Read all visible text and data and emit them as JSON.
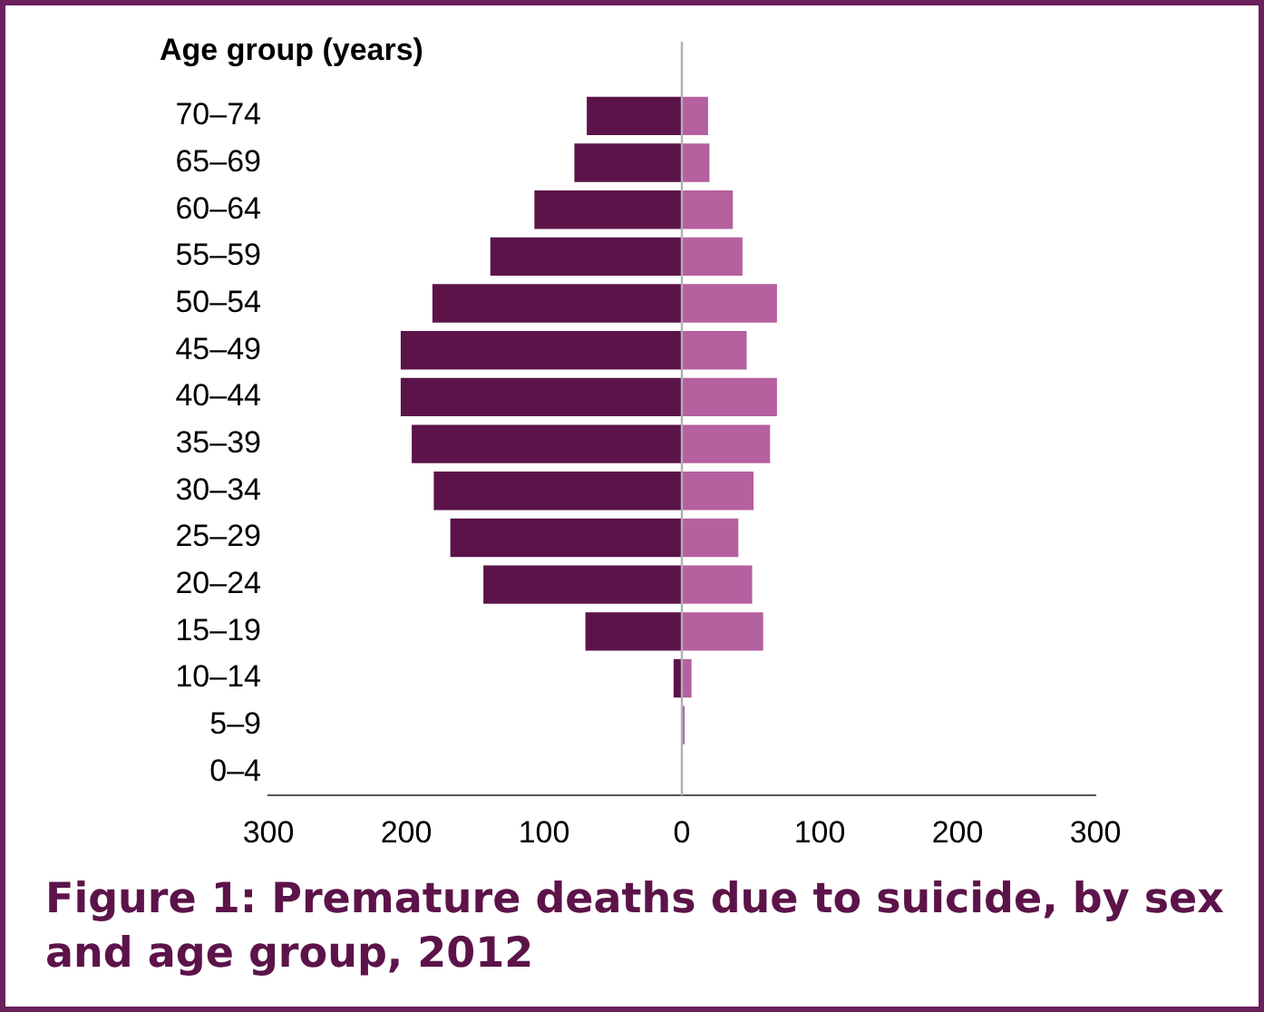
{
  "chart_data": {
    "type": "bar",
    "orientation": "horizontal",
    "stacked": true,
    "title": "Figure 1: Premature deaths due to suicide, by sex and age group, 2012",
    "ylabel": "Age group (years)",
    "categories": [
      "70–74",
      "65–69",
      "60–64",
      "55–59",
      "50–54",
      "45–49",
      "40–44",
      "35–39",
      "30–34",
      "25–29",
      "20–24",
      "15–19",
      "10–14",
      "5–9",
      "0–4"
    ],
    "series": [
      {
        "color": "#5c1349",
        "values": [
          -69,
          -78,
          -107,
          -139,
          -181,
          -204,
          -204,
          -196,
          -180,
          -168,
          -144,
          -70,
          -6,
          0,
          0
        ]
      },
      {
        "color": "#b5609f",
        "values": [
          19,
          20,
          37,
          44,
          69,
          47,
          69,
          64,
          52,
          41,
          51,
          59,
          7,
          2,
          0
        ]
      }
    ],
    "xlim": [
      -300,
      300
    ],
    "xticks": [
      {
        "value": -300,
        "label": "300"
      },
      {
        "value": -200,
        "label": "200"
      },
      {
        "value": -100,
        "label": "100"
      },
      0,
      100,
      200,
      300
    ],
    "ref_lines": [
      {
        "axis": "x",
        "value": 0,
        "color": "#b0b0b0"
      }
    ],
    "grid": false,
    "legend": false
  }
}
